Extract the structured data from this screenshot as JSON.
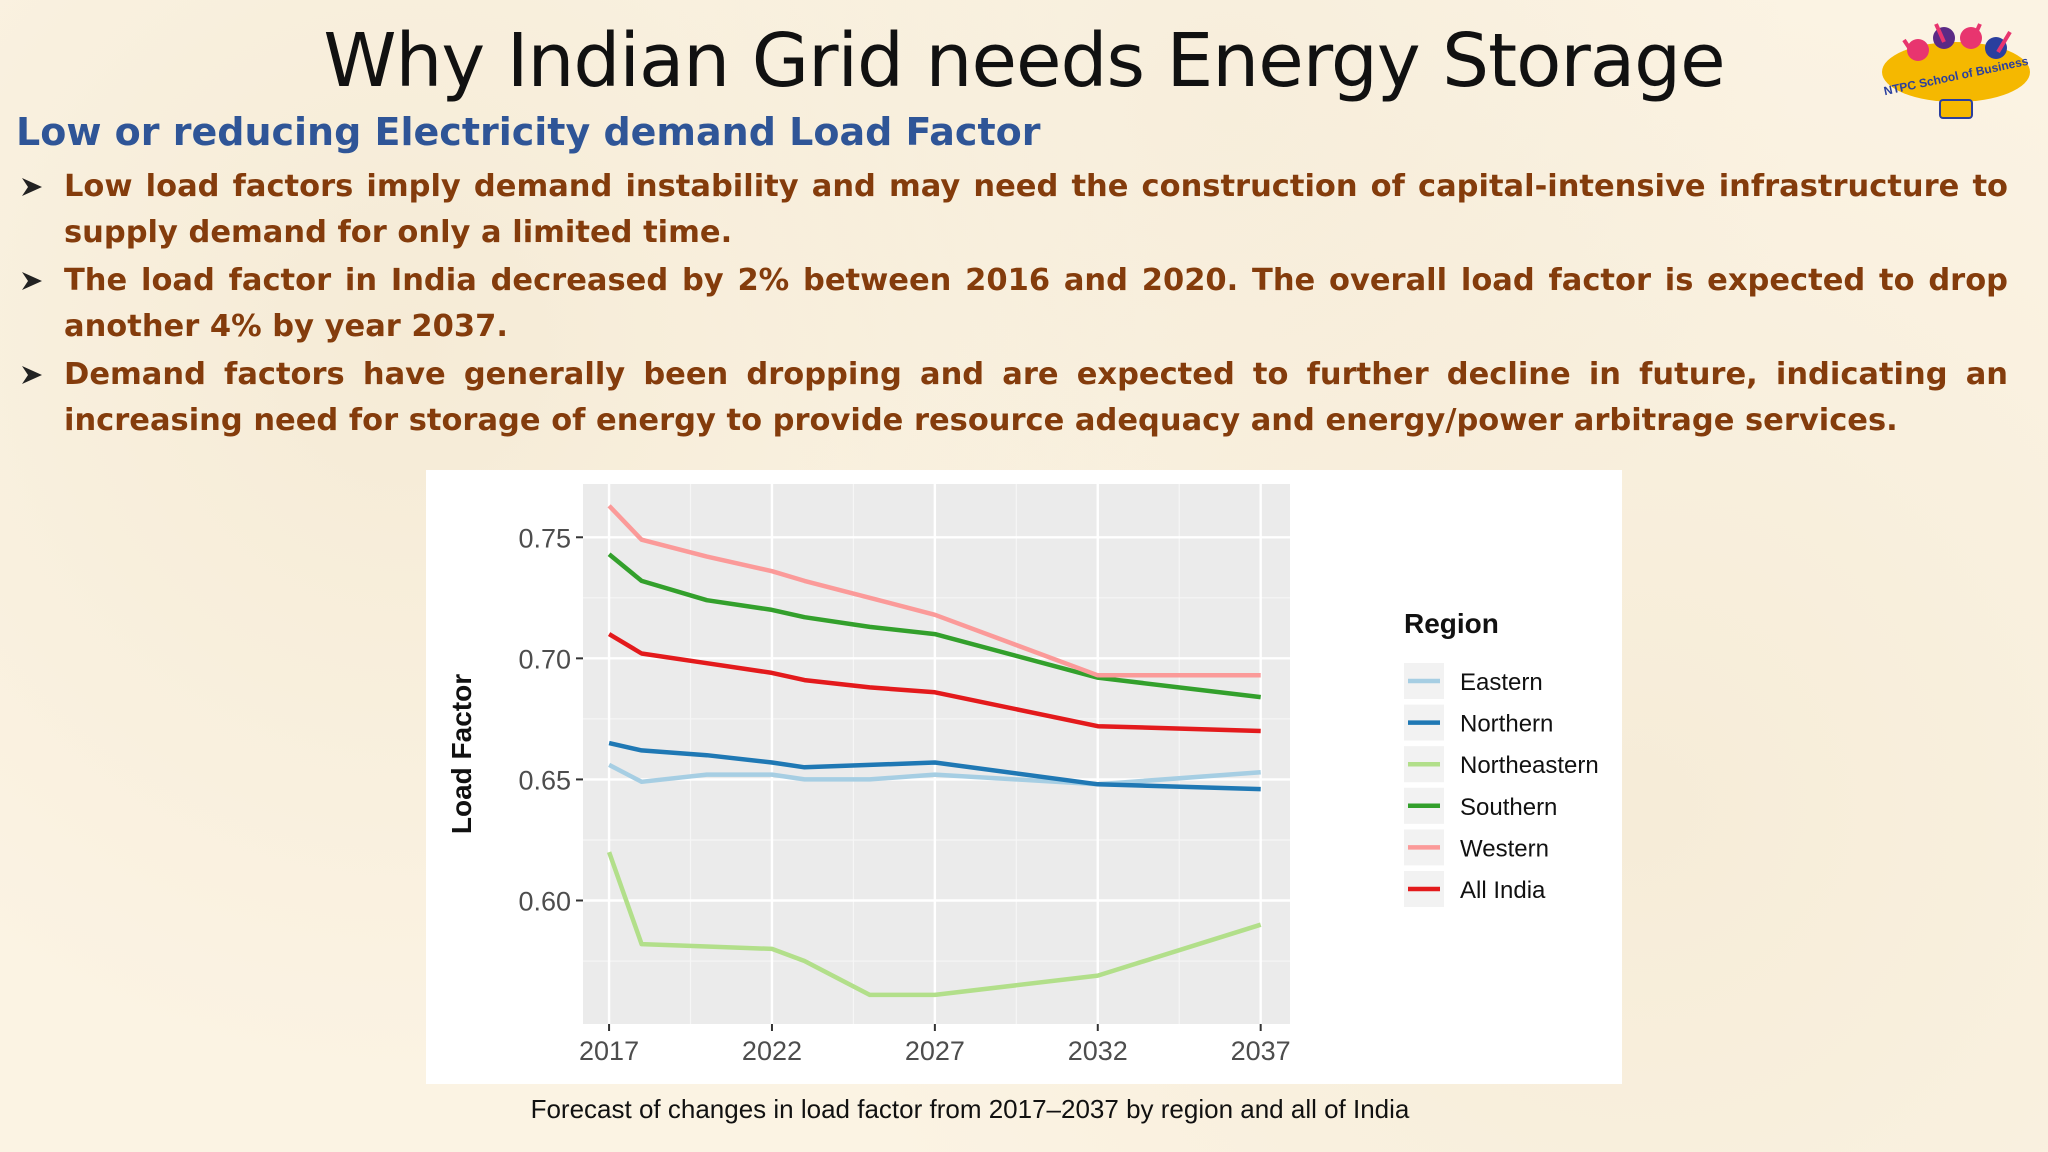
{
  "slide": {
    "title": "Why Indian Grid needs Energy Storage",
    "subtitle": "Low or reducing Electricity demand Load Factor",
    "bullets": [
      "Low load factors imply demand instability and may need the construction of capital-intensive infrastructure to supply demand for only a limited time.",
      "The load factor in India decreased by 2% between 2016 and 2020. The overall load factor is expected to drop another 4% by year 2037.",
      "Demand factors have generally been dropping and are expected to further decline in future, indicating an increasing need for storage of energy to provide resource adequacy and energy/power arbitrage services."
    ],
    "caption": "Forecast of changes in load factor from 2017–2037 by region and all of India",
    "bullet_icon": "arrowhead-bullet-icon",
    "logo": {
      "text": "NTPC School of Business",
      "icon": "ntpc-logo-icon"
    },
    "colors": {
      "title": "#111111",
      "subtitle": "#2f5597",
      "bullets": "#843c0c",
      "background": "#fbf3e3"
    }
  },
  "chart_data": {
    "type": "line",
    "title": "",
    "xlabel": "",
    "ylabel": "Load Factor",
    "legend_title": "Region",
    "legend_position": "right",
    "grid": true,
    "xlim": [
      2016.2,
      2037.9
    ],
    "ylim": [
      0.549,
      0.772
    ],
    "xticks": [
      2017,
      2022,
      2027,
      2032,
      2037
    ],
    "yticks": [
      0.6,
      0.65,
      0.7,
      0.75
    ],
    "ytick_labels": [
      "0.60",
      "0.65",
      "0.70",
      "0.75"
    ],
    "x": [
      2017,
      2018,
      2020,
      2022,
      2023,
      2025,
      2027,
      2032,
      2037
    ],
    "series": [
      {
        "name": "Eastern",
        "color": "#a6cee3",
        "values": [
          0.656,
          0.649,
          0.652,
          0.652,
          0.65,
          0.65,
          0.652,
          0.648,
          0.653
        ]
      },
      {
        "name": "Northern",
        "color": "#1f78b4",
        "values": [
          0.665,
          0.662,
          0.66,
          0.657,
          0.655,
          0.656,
          0.657,
          0.648,
          0.646
        ]
      },
      {
        "name": "Northeastern",
        "color": "#b2df8a",
        "values": [
          0.62,
          0.582,
          0.581,
          0.58,
          0.575,
          0.561,
          0.561,
          0.569,
          0.59
        ]
      },
      {
        "name": "Southern",
        "color": "#33a02c",
        "values": [
          0.743,
          0.732,
          0.724,
          0.72,
          0.717,
          0.713,
          0.71,
          0.692,
          0.684
        ]
      },
      {
        "name": "Western",
        "color": "#fb9a99",
        "values": [
          0.763,
          0.749,
          0.742,
          0.736,
          0.732,
          0.725,
          0.718,
          0.693,
          0.693
        ]
      },
      {
        "name": "All India",
        "color": "#e31a1c",
        "values": [
          0.71,
          0.702,
          0.698,
          0.694,
          0.691,
          0.688,
          0.686,
          0.672,
          0.67
        ]
      }
    ]
  }
}
